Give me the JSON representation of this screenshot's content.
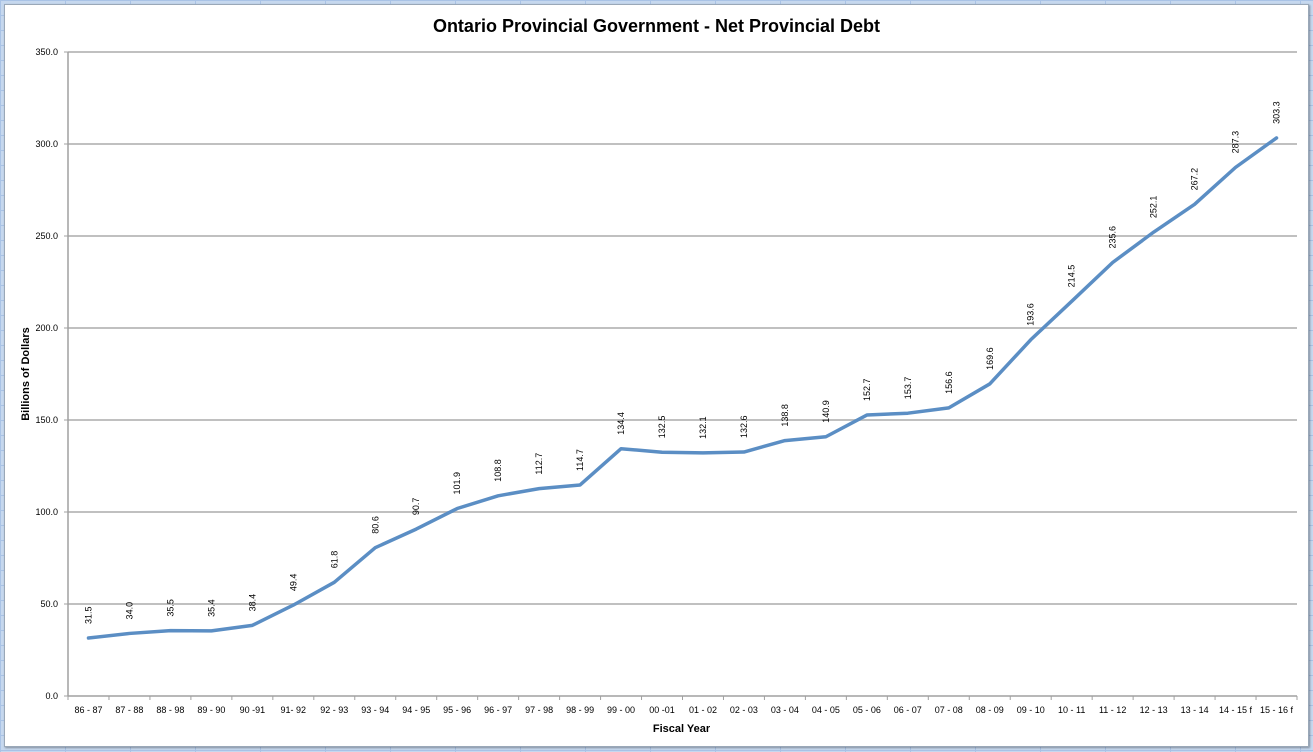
{
  "chart_data": {
    "type": "line",
    "title": "Ontario Provincial Government - Net Provincial Debt",
    "xlabel": "Fiscal Year",
    "ylabel": "Billions of Dollars",
    "ylim": [
      0,
      350
    ],
    "yticks": [
      "0.0",
      "50.0",
      "100.0",
      "150.0",
      "200.0",
      "250.0",
      "300.0",
      "350.0"
    ],
    "grid": true,
    "legend": null,
    "line_color": "#5b8ec4",
    "categories": [
      "86 - 87",
      "87 - 88",
      "88 - 98",
      "89 - 90",
      "90 -91",
      "91- 92",
      "92 - 93",
      "93 - 94",
      "94 - 95",
      "95 - 96",
      "96 - 97",
      "97 - 98",
      "98 - 99",
      "99 - 00",
      "00 -01",
      "01 - 02",
      "02 - 03",
      "03 - 04",
      "04 - 05",
      "05 - 06",
      "06 - 07",
      "07 - 08",
      "08 - 09",
      "09 - 10",
      "10 - 11",
      "11 - 12",
      "12 - 13",
      "13 - 14",
      "14 - 15 f",
      "15 - 16 f"
    ],
    "series": [
      {
        "name": "Net Provincial Debt",
        "values": [
          31.5,
          34.0,
          35.5,
          35.4,
          38.4,
          49.4,
          61.8,
          80.6,
          90.7,
          101.9,
          108.8,
          112.7,
          114.7,
          134.4,
          132.5,
          132.1,
          132.6,
          138.8,
          140.9,
          152.7,
          153.7,
          156.6,
          169.6,
          193.6,
          214.5,
          235.6,
          252.1,
          267.2,
          287.3,
          303.3
        ],
        "labels": [
          "31.5",
          "34.0",
          "35.5",
          "35.4",
          "38.4",
          "49.4",
          "61.8",
          "80.6",
          "90.7",
          "101.9",
          "108.8",
          "112.7",
          "114.7",
          "134.4",
          "132.5",
          "132.1",
          "132.6",
          "138.8",
          "140.9",
          "152.7",
          "153.7",
          "156.6",
          "169.6",
          "193.6",
          "214.5",
          "235.6",
          "252.1",
          "267.2",
          "287.3",
          "303.3"
        ]
      }
    ]
  }
}
